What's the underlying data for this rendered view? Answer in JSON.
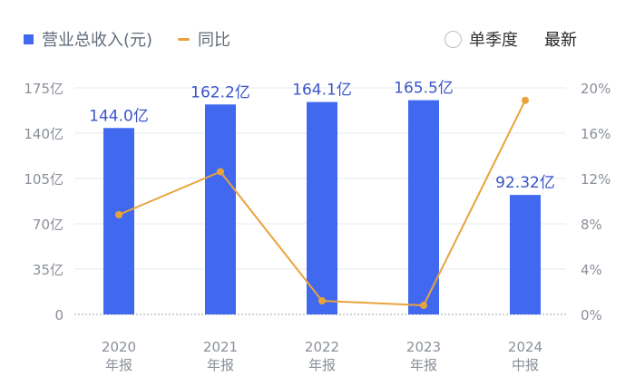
{
  "legend": {
    "bar_label": "营业总收入(元)",
    "line_label": "同比",
    "toggle_label": "单季度",
    "latest_label": "最新"
  },
  "colors": {
    "bar": "#4169f0",
    "line": "#e9a33c",
    "bar_label": "#3a55c9",
    "axis_text": "#8a8f99",
    "grid": "#e6e8ec"
  },
  "chart_data": {
    "type": "bar",
    "categories": [
      [
        "2020",
        "年报"
      ],
      [
        "2021",
        "年报"
      ],
      [
        "2022",
        "年报"
      ],
      [
        "2023",
        "年报"
      ],
      [
        "2024",
        "中报"
      ]
    ],
    "series": [
      {
        "name": "营业总收入(元)",
        "type": "bar",
        "axis": "left",
        "values": [
          144.0,
          162.2,
          164.1,
          165.5,
          92.32
        ],
        "labels": [
          "144.0亿",
          "162.2亿",
          "164.1亿",
          "165.5亿",
          "92.32亿"
        ]
      },
      {
        "name": "同比",
        "type": "line",
        "axis": "right",
        "values": [
          8.8,
          12.6,
          1.2,
          0.8,
          18.9
        ]
      }
    ],
    "y_left": {
      "ylim": [
        0,
        175
      ],
      "ticks": [
        0,
        35,
        70,
        105,
        140,
        175
      ],
      "tick_labels": [
        "0",
        "35亿",
        "70亿",
        "105亿",
        "140亿",
        "175亿"
      ]
    },
    "y_right": {
      "ylim": [
        0,
        20
      ],
      "ticks": [
        0,
        4,
        8,
        12,
        16,
        20
      ],
      "tick_labels": [
        "0%",
        "4%",
        "8%",
        "12%",
        "16%",
        "20%"
      ]
    },
    "grid": true,
    "legend_position": "top-left"
  }
}
